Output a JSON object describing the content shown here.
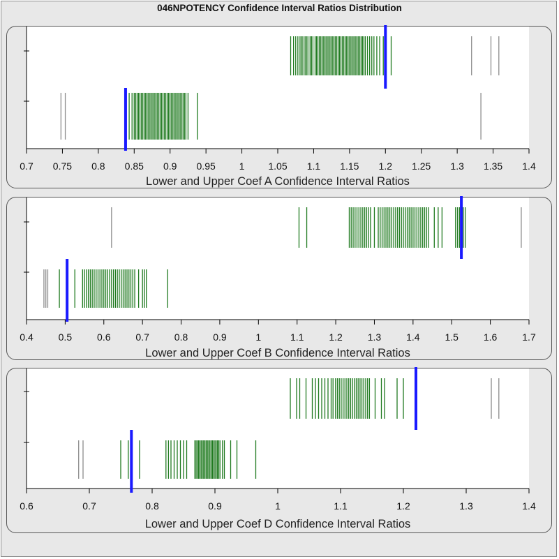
{
  "title": "046NPOTENCY Confidence Interval Ratios Distribution",
  "colors": {
    "inside": "#1f7a1f",
    "outside": "#8c8c8c",
    "marker": "#1a1aff",
    "plot_bg": "#ffffff",
    "panel_bg": "#e8e8e8"
  },
  "chart_data": [
    {
      "type": "rug",
      "xlabel": "Lower and Upper Coef A Confidence Interval Ratios",
      "xlim": [
        0.7,
        1.4
      ],
      "xticks": [
        "0.7",
        "0.75",
        "0.8",
        "0.85",
        "0.9",
        "0.95",
        "1",
        "1.05",
        "1.1",
        "1.15",
        "1.2",
        "1.25",
        "1.3",
        "1.35",
        "1.4"
      ],
      "grid": false,
      "series": [
        {
          "marker": 1.2,
          "inside": [
            1.068,
            1.072,
            1.075,
            1.078,
            1.081,
            1.083,
            1.085,
            1.088,
            1.09,
            1.092,
            1.095,
            1.097,
            1.099,
            1.102,
            1.104,
            1.106,
            1.108,
            1.11,
            1.112,
            1.114,
            1.116,
            1.118,
            1.12,
            1.122,
            1.124,
            1.126,
            1.128,
            1.13,
            1.132,
            1.134,
            1.136,
            1.138,
            1.14,
            1.142,
            1.144,
            1.146,
            1.148,
            1.15,
            1.152,
            1.154,
            1.156,
            1.158,
            1.16,
            1.162,
            1.164,
            1.166,
            1.168,
            1.17,
            1.172,
            1.175,
            1.178,
            1.181,
            1.184,
            1.188,
            1.192,
            1.197,
            1.208
          ],
          "outside": [
            1.32,
            1.347,
            1.358
          ]
        },
        {
          "marker": 0.838,
          "inside": [
            0.843,
            0.847,
            0.85,
            0.852,
            0.854,
            0.856,
            0.858,
            0.86,
            0.862,
            0.864,
            0.866,
            0.868,
            0.87,
            0.872,
            0.874,
            0.876,
            0.878,
            0.88,
            0.882,
            0.884,
            0.886,
            0.888,
            0.89,
            0.892,
            0.894,
            0.896,
            0.898,
            0.9,
            0.902,
            0.904,
            0.906,
            0.908,
            0.91,
            0.912,
            0.914,
            0.916,
            0.918,
            0.92,
            0.922,
            0.925,
            0.938
          ],
          "outside": [
            0.748,
            0.754,
            1.333
          ]
        }
      ]
    },
    {
      "type": "rug",
      "xlabel": "Lower and Upper Coef B Confidence Interval Ratios",
      "xlim": [
        0.4,
        1.7
      ],
      "xticks": [
        "0.4",
        "0.5",
        "0.6",
        "0.7",
        "0.8",
        "0.9",
        "1",
        "1.1",
        "1.2",
        "1.3",
        "1.4",
        "1.5",
        "1.6",
        "1.7"
      ],
      "grid": false,
      "series": [
        {
          "marker": 1.525,
          "inside": [
            1.105,
            1.125,
            1.235,
            1.24,
            1.245,
            1.25,
            1.255,
            1.26,
            1.265,
            1.27,
            1.275,
            1.28,
            1.285,
            1.29,
            1.3,
            1.31,
            1.315,
            1.32,
            1.325,
            1.33,
            1.335,
            1.34,
            1.345,
            1.35,
            1.355,
            1.36,
            1.365,
            1.37,
            1.375,
            1.38,
            1.385,
            1.39,
            1.395,
            1.4,
            1.405,
            1.41,
            1.415,
            1.42,
            1.425,
            1.43,
            1.435,
            1.44,
            1.455,
            1.465,
            1.475,
            1.51,
            1.515,
            1.52,
            1.53,
            1.535
          ],
          "outside": [
            0.62,
            1.68
          ]
        },
        {
          "marker": 0.505,
          "inside": [
            0.485,
            0.505,
            0.525,
            0.545,
            0.55,
            0.555,
            0.56,
            0.565,
            0.57,
            0.575,
            0.58,
            0.585,
            0.59,
            0.595,
            0.6,
            0.605,
            0.61,
            0.615,
            0.62,
            0.625,
            0.63,
            0.635,
            0.64,
            0.645,
            0.65,
            0.655,
            0.66,
            0.665,
            0.67,
            0.675,
            0.68,
            0.69,
            0.7,
            0.705,
            0.71,
            0.765
          ],
          "outside": [
            0.445,
            0.45,
            0.455
          ]
        }
      ]
    },
    {
      "type": "rug",
      "xlabel": "Lower and Upper Coef D Confidence Interval Ratios",
      "xlim": [
        0.6,
        1.4
      ],
      "xticks": [
        "0.6",
        "0.7",
        "0.8",
        "0.9",
        "1",
        "1.1",
        "1.2",
        "1.3",
        "1.4"
      ],
      "grid": false,
      "series": [
        {
          "marker": 1.22,
          "inside": [
            1.02,
            1.03,
            1.035,
            1.045,
            1.055,
            1.06,
            1.065,
            1.07,
            1.075,
            1.08,
            1.085,
            1.088,
            1.092,
            1.095,
            1.098,
            1.101,
            1.104,
            1.107,
            1.11,
            1.113,
            1.116,
            1.119,
            1.122,
            1.125,
            1.128,
            1.131,
            1.134,
            1.137,
            1.14,
            1.143,
            1.146,
            1.155,
            1.165,
            1.17,
            1.19,
            1.2
          ],
          "outside": [
            1.34,
            1.352
          ]
        },
        {
          "marker": 0.767,
          "inside": [
            0.75,
            0.762,
            0.78,
            0.822,
            0.826,
            0.83,
            0.835,
            0.84,
            0.845,
            0.85,
            0.855,
            0.868,
            0.87,
            0.872,
            0.874,
            0.876,
            0.878,
            0.88,
            0.882,
            0.884,
            0.886,
            0.888,
            0.89,
            0.892,
            0.894,
            0.896,
            0.898,
            0.9,
            0.902,
            0.904,
            0.906,
            0.908,
            0.912,
            0.915,
            0.925,
            0.935,
            0.965
          ],
          "outside": [
            0.683,
            0.69
          ]
        }
      ]
    }
  ]
}
